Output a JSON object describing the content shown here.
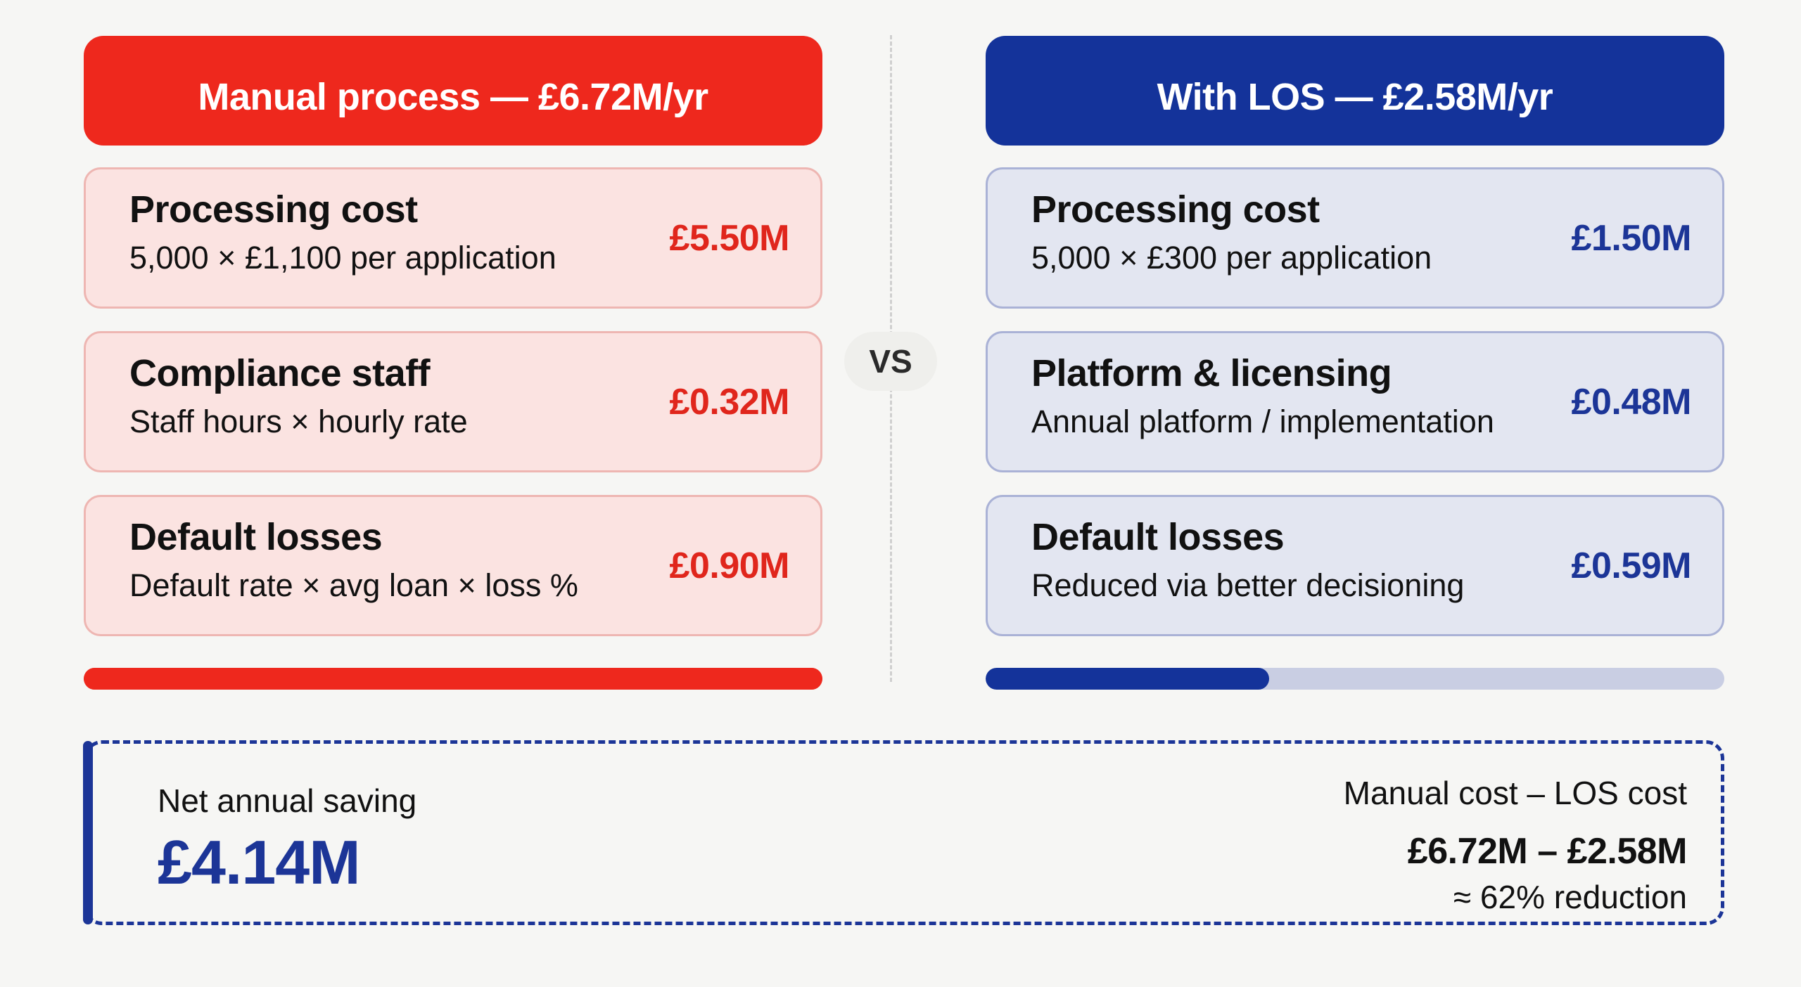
{
  "manual": {
    "header": "Manual process — £6.72M/yr",
    "total": "£6.72M",
    "color": "#ee281d",
    "items": [
      {
        "title": "Processing cost",
        "subtitle": "5,000 × £1,100 per application",
        "value": "£5.50M"
      },
      {
        "title": "Compliance staff",
        "subtitle": "Staff hours × hourly rate",
        "value": "£0.32M"
      },
      {
        "title": "Default losses",
        "subtitle": "Default rate × avg loan × loss %",
        "value": "£0.90M"
      }
    ],
    "bar_percent": 100
  },
  "los": {
    "header": "With LOS — £2.58M/yr",
    "total": "£2.58M",
    "color": "#14339a",
    "items": [
      {
        "title": "Processing cost",
        "subtitle": "5,000 × £300 per application",
        "value": "£1.50M"
      },
      {
        "title": "Platform & licensing",
        "subtitle": "Annual platform / implementation",
        "value": "£0.48M"
      },
      {
        "title": "Default losses",
        "subtitle": "Reduced via better decisioning",
        "value": "£0.59M"
      }
    ],
    "bar_percent": 38.4
  },
  "vs_label": "VS",
  "summary": {
    "label": "Net annual saving",
    "value": "£4.14M",
    "formula": "Manual cost – LOS cost",
    "calculation": "£6.72M – £2.58M",
    "reduction": "≈ 62% reduction"
  }
}
